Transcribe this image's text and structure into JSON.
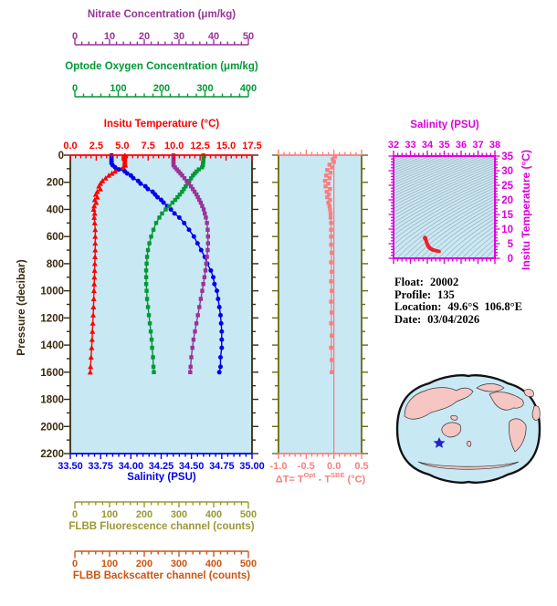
{
  "colors": {
    "nitrate": "#993399",
    "oxygen": "#009933",
    "temperature": "#ff0000",
    "salinity": "#0000ee",
    "pressure_axis": "#3a2a10",
    "delta_t": "#f87f7f",
    "delta_axis_olive": "#6b6b11",
    "fluorescence": "#999933",
    "backscatter": "#cc5511",
    "ts_magenta": "#dd00dd",
    "ts_profile_outline": "#ee2222",
    "plot_bg": "#c8e8f4",
    "contour": "#a5b4bc",
    "map_land": "#f5c6c2",
    "map_outline": "#111111",
    "star": "#2222cc"
  },
  "info": {
    "float_label": "Float:",
    "float_value": "20002",
    "profile_label": "Profile:",
    "profile_value": "135",
    "location_label": "Location:",
    "location_value": "49.6°S  106.8°E",
    "date_label": "Date:",
    "date_value": "03/04/2026"
  },
  "chart_data": [
    {
      "type": "line",
      "description": "Vertical profiles vs pressure, 0-1600 decibar plotted",
      "axes": {
        "pressure": {
          "label": "Pressure (decibar)",
          "lim": [
            0,
            2200
          ],
          "major_step": 200,
          "minor_step": 100,
          "tick_labels": [
            "0",
            "200",
            "400",
            "600",
            "800",
            "1000",
            "1200",
            "1400",
            "1600",
            "1800",
            "2000",
            "2200"
          ]
        },
        "temperature": {
          "label": "Insitu Temperature (°C)",
          "lim": [
            0,
            17.5
          ],
          "major_step": 2.5,
          "minor_step": 0.5,
          "tick_labels": [
            "0.0",
            "2.5",
            "5.0",
            "7.5",
            "10.0",
            "12.5",
            "15.0",
            "17.5"
          ]
        },
        "salinity": {
          "label": "Salinity (PSU)",
          "lim": [
            33.5,
            35.0
          ],
          "major_step": 0.25,
          "minor_step": 0.05,
          "tick_labels": [
            "33.50",
            "33.75",
            "34.00",
            "34.25",
            "34.50",
            "34.75",
            "35.00"
          ]
        },
        "oxygen": {
          "label": "Optode Oxygen Concentration (μm/kg)",
          "lim": [
            0,
            400
          ],
          "major_step": 100,
          "minor_step": 20,
          "tick_labels": [
            "0",
            "100",
            "200",
            "300",
            "400"
          ]
        },
        "nitrate": {
          "label": "Nitrate Concentration (μm/kg)",
          "lim": [
            0,
            50
          ],
          "major_step": 10,
          "minor_step": 2,
          "tick_labels": [
            "0",
            "10",
            "20",
            "30",
            "40",
            "50"
          ]
        },
        "fluorescence": {
          "label": "FLBB Fluorescence channel (counts)",
          "lim": [
            0,
            500
          ],
          "major_step": 100,
          "minor_step": 20,
          "tick_labels": [
            "0",
            "100",
            "200",
            "300",
            "400",
            "500"
          ],
          "values": null
        },
        "backscatter": {
          "label": "FLBB Backscatter channel (counts)",
          "lim": [
            0,
            500
          ],
          "major_step": 100,
          "minor_step": 20,
          "tick_labels": [
            "0",
            "100",
            "200",
            "300",
            "400",
            "500"
          ],
          "values": null
        }
      },
      "pressure": [
        0,
        15,
        30,
        45,
        60,
        75,
        90,
        105,
        120,
        135,
        150,
        170,
        190,
        210,
        230,
        250,
        270,
        290,
        310,
        330,
        350,
        375,
        400,
        430,
        460,
        500,
        550,
        600,
        650,
        700,
        750,
        800,
        850,
        900,
        950,
        1000,
        1060,
        1120,
        1180,
        1240,
        1300,
        1360,
        1420,
        1490,
        1560,
        1600
      ],
      "series": [
        {
          "name": "Insitu Temperature (°C)",
          "axis": "temperature",
          "marker": "triangle",
          "color_key": "temperature",
          "values": [
            5.25,
            5.25,
            5.25,
            5.25,
            5.25,
            5.3,
            5.1,
            4.5,
            4.3,
            4.0,
            3.7,
            3.4,
            3.1,
            2.9,
            2.75,
            2.9,
            2.6,
            2.45,
            2.6,
            2.35,
            2.5,
            2.3,
            2.25,
            2.35,
            2.3,
            2.35,
            2.4,
            2.4,
            2.4,
            2.4,
            2.38,
            2.36,
            2.34,
            2.32,
            2.3,
            2.28,
            2.26,
            2.23,
            2.2,
            2.17,
            2.13,
            2.1,
            2.06,
            2.0,
            1.95,
            1.92
          ]
        },
        {
          "name": "Salinity (PSU)",
          "axis": "salinity",
          "marker": "circle",
          "color_key": "salinity",
          "values": [
            33.84,
            33.84,
            33.84,
            33.84,
            33.84,
            33.85,
            33.87,
            33.9,
            33.95,
            33.97,
            34.0,
            34.02,
            34.06,
            34.08,
            34.12,
            34.14,
            34.18,
            34.2,
            34.22,
            34.25,
            34.27,
            34.3,
            34.33,
            34.36,
            34.4,
            34.44,
            34.48,
            34.52,
            34.55,
            34.58,
            34.61,
            34.63,
            34.66,
            34.68,
            34.69,
            34.71,
            34.72,
            34.73,
            34.74,
            34.745,
            34.75,
            34.75,
            34.75,
            34.74,
            34.74,
            34.73
          ]
        },
        {
          "name": "Optode Oxygen Concentration (μm/kg)",
          "axis": "oxygen",
          "marker": "square",
          "color_key": "oxygen",
          "values": [
            293,
            293,
            293,
            293,
            292,
            292,
            290,
            283,
            278,
            274,
            270,
            266,
            262,
            258,
            254,
            250,
            246,
            241,
            236,
            231,
            225,
            218,
            210,
            202,
            196,
            189,
            183,
            178,
            174,
            171,
            169,
            168,
            167,
            167,
            167,
            168,
            169,
            171,
            173,
            175,
            177,
            179,
            180,
            182,
            183,
            184
          ]
        },
        {
          "name": "Nitrate Concentration (μm/kg)",
          "axis": "nitrate",
          "marker": "square",
          "color_key": "nitrate",
          "values": [
            28.4,
            28.4,
            28.4,
            28.4,
            28.4,
            28.4,
            28.8,
            29.3,
            29.8,
            30.3,
            30.8,
            31.4,
            32.0,
            32.6,
            33.2,
            33.7,
            34.2,
            34.7,
            35.1,
            35.5,
            35.9,
            36.3,
            36.7,
            37.0,
            37.3,
            37.6,
            37.8,
            37.9,
            37.9,
            37.8,
            37.6,
            37.4,
            37.2,
            36.9,
            36.6,
            36.3,
            35.9,
            35.5,
            35.1,
            34.7,
            34.3,
            33.9,
            33.6,
            33.3,
            33.1,
            33.0
          ]
        }
      ]
    },
    {
      "type": "line",
      "description": "Temperature difference Optode minus SBE vs pressure",
      "xlabel_parts": {
        "p1": "ΔT= T",
        "sup1": "Opt",
        "p2": " - T",
        "sup2": "SBE",
        "p3": " (°C)"
      },
      "xlim": [
        -1.0,
        0.5
      ],
      "major_step": 0.5,
      "minor_step": 0.1,
      "x_tick_labels": [
        "-1.0",
        "-0.5",
        "0.0",
        "0.5"
      ],
      "ylim": [
        0,
        2200
      ],
      "pressure": [
        10,
        30,
        50,
        70,
        90,
        110,
        130,
        150,
        170,
        190,
        210,
        230,
        250,
        270,
        290,
        310,
        330,
        350,
        375,
        400,
        430,
        460,
        500,
        550,
        600,
        660,
        720,
        790,
        860,
        930,
        1000,
        1080,
        1160,
        1240,
        1330,
        1420,
        1510,
        1600
      ],
      "values": [
        0.02,
        -0.02,
        0.0,
        -0.08,
        -0.03,
        -0.12,
        -0.06,
        -0.14,
        -0.08,
        -0.16,
        -0.1,
        -0.15,
        -0.07,
        -0.13,
        -0.09,
        -0.12,
        -0.07,
        -0.1,
        -0.08,
        -0.07,
        -0.06,
        -0.06,
        -0.05,
        -0.05,
        -0.05,
        -0.05,
        -0.04,
        -0.05,
        -0.04,
        -0.05,
        -0.04,
        -0.05,
        -0.04,
        -0.05,
        -0.04,
        -0.05,
        -0.04,
        -0.04
      ]
    },
    {
      "type": "line",
      "description": "T-S diagram with isopycnal contours and profile trace",
      "xlabel": "Salinity (PSU)",
      "ylabel": "Insitu Temperature (°C)",
      "xlim": [
        32,
        38
      ],
      "x_major_step": 1,
      "x_minor_step": 0.25,
      "x_tick_labels": [
        "32",
        "33",
        "34",
        "35",
        "36",
        "37",
        "38"
      ],
      "ylim": [
        0,
        35
      ],
      "y_major_step": 5,
      "y_minor_step": 1,
      "y_tick_labels": [
        "0",
        "5",
        "10",
        "15",
        "20",
        "25",
        "30",
        "35"
      ],
      "profile_polygon": [
        [
          33.78,
          7.0
        ],
        [
          33.86,
          6.2
        ],
        [
          33.92,
          5.2
        ],
        [
          33.98,
          4.2
        ],
        [
          34.08,
          3.3
        ],
        [
          34.25,
          2.7
        ],
        [
          34.5,
          2.3
        ],
        [
          34.74,
          2.1
        ],
        [
          34.74,
          2.6
        ],
        [
          34.5,
          2.9
        ],
        [
          34.3,
          3.3
        ],
        [
          34.15,
          4.0
        ],
        [
          34.05,
          5.0
        ],
        [
          33.98,
          6.0
        ],
        [
          33.95,
          7.0
        ],
        [
          33.86,
          7.5
        ]
      ]
    }
  ]
}
